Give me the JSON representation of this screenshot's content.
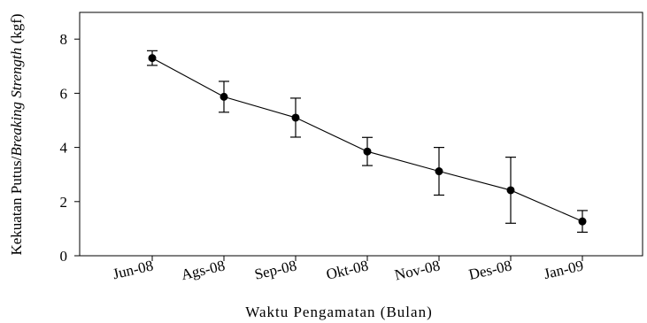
{
  "chart_data": {
    "type": "line",
    "categories": [
      "Jun-08",
      "Ags-08",
      "Sep-08",
      "Okt-08",
      "Nov-08",
      "Des-08",
      "Jan-09"
    ],
    "series": [
      {
        "values": [
          7.3,
          5.87,
          5.1,
          3.85,
          3.12,
          2.42,
          1.27
        ],
        "error_low": [
          0.27,
          0.57,
          0.72,
          0.52,
          0.88,
          1.22,
          0.4
        ],
        "error_high": [
          0.27,
          0.57,
          0.72,
          0.52,
          0.88,
          1.22,
          0.4
        ]
      }
    ],
    "title": "",
    "xlabel": "Waktu Pengamatan (Bulan)",
    "ylabel_regular": "Kekuatan Putus/",
    "ylabel_italic": "Breaking Strength",
    "ylabel_unit": " (kgf)",
    "ylim": [
      0,
      9
    ],
    "yticks": [
      "0",
      "2",
      "4",
      "6",
      "8"
    ],
    "grid": false,
    "legend": "none"
  }
}
